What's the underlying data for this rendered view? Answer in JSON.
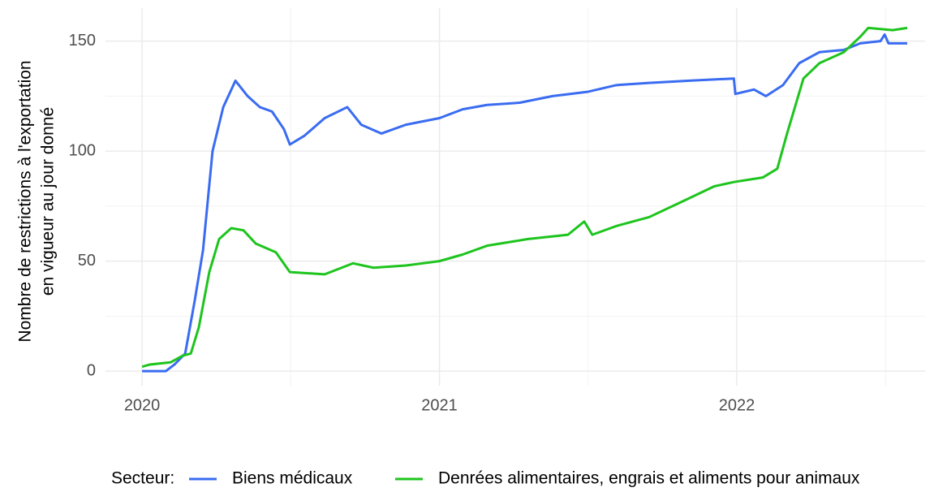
{
  "chart_data": {
    "type": "line",
    "y_label": [
      "Nombre de restrictions à l'exportation",
      "en vigueur au jour donné"
    ],
    "legend_title": "Secteur:",
    "legend_position": "bottom",
    "grid": true,
    "xlim": [
      2019.877,
      2022.633
    ],
    "xticks": [
      2020,
      2021,
      2022
    ],
    "ylim": [
      -6.6,
      165
    ],
    "yticks": [
      0,
      50,
      100,
      150
    ],
    "series": [
      {
        "name": "Biens médicaux",
        "color": "#3a6cf2",
        "x": [
          2020.0,
          2020.08,
          2020.109,
          2020.145,
          2020.177,
          2020.205,
          2020.237,
          2020.273,
          2020.314,
          2020.355,
          2020.396,
          2020.437,
          2020.477,
          2020.497,
          2020.546,
          2020.614,
          2020.69,
          2020.737,
          2020.805,
          2020.887,
          2021.0,
          2021.078,
          2021.16,
          2021.27,
          2021.38,
          2021.5,
          2021.595,
          2021.705,
          2021.84,
          2021.99,
          2021.995,
          2022.058,
          2022.098,
          2022.155,
          2022.21,
          2022.278,
          2022.36,
          2022.415,
          2022.483,
          2022.497,
          2022.51,
          2022.573
        ],
        "values": [
          0,
          0,
          3,
          8,
          32,
          55,
          100,
          120,
          132,
          125,
          120,
          118,
          110,
          103,
          107,
          115,
          120,
          112,
          108,
          112,
          115,
          119,
          121,
          122,
          125,
          127,
          130,
          131,
          132,
          133,
          126,
          128,
          125,
          130,
          140,
          145,
          146,
          149,
          150,
          153,
          149,
          149
        ]
      },
      {
        "name": "Denrées alimentaires, engrais et aliments pour animaux",
        "color": "#1ec41e",
        "x": [
          2020.0,
          2020.027,
          2020.096,
          2020.136,
          2020.164,
          2020.191,
          2020.226,
          2020.259,
          2020.3,
          2020.341,
          2020.382,
          2020.45,
          2020.497,
          2020.614,
          2020.709,
          2020.778,
          2020.887,
          2021.0,
          2021.078,
          2021.16,
          2021.296,
          2021.432,
          2021.487,
          2021.514,
          2021.596,
          2021.705,
          2021.815,
          2021.924,
          2021.992,
          2022.087,
          2022.136,
          2022.169,
          2022.224,
          2022.278,
          2022.36,
          2022.415,
          2022.442,
          2022.524,
          2022.573
        ],
        "values": [
          2,
          3,
          4,
          7,
          8,
          20,
          45,
          60,
          65,
          64,
          58,
          54,
          45,
          44,
          49,
          47,
          48,
          50,
          53,
          57,
          60,
          62,
          68,
          62,
          66,
          70,
          77,
          84,
          86,
          88,
          92,
          108,
          133,
          140,
          145,
          152,
          156,
          155,
          156
        ]
      }
    ]
  }
}
